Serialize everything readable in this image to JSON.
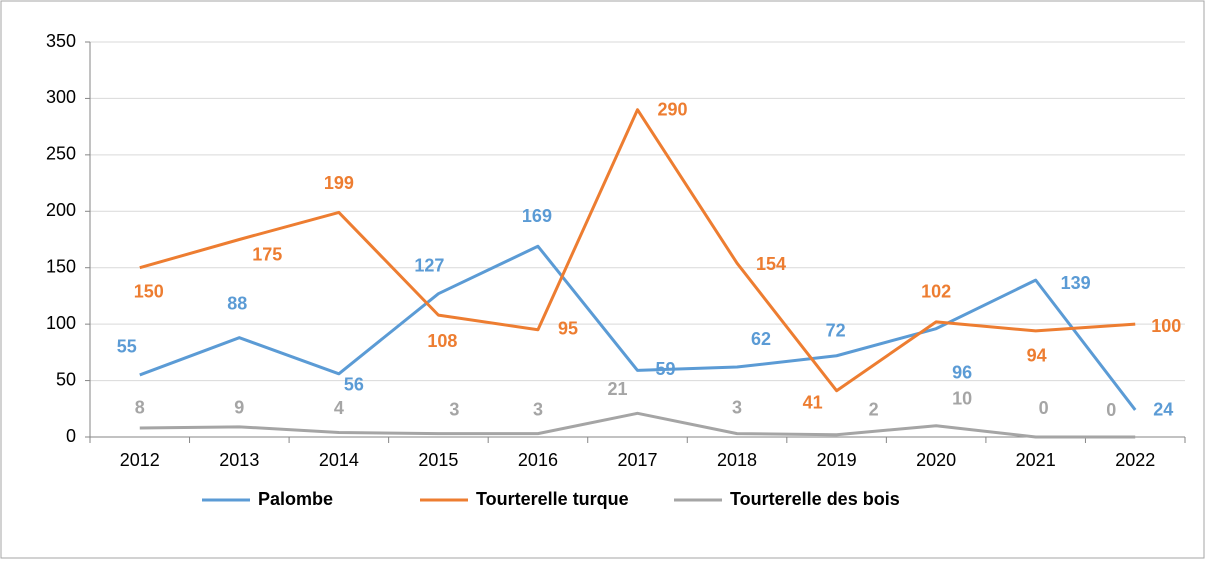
{
  "chart_data": {
    "type": "line",
    "categories": [
      "2012",
      "2013",
      "2014",
      "2015",
      "2016",
      "2017",
      "2018",
      "2019",
      "2020",
      "2021",
      "2022"
    ],
    "series": [
      {
        "name": "Palombe",
        "color": "#5b9bd5",
        "values": [
          55,
          88,
          56,
          127,
          169,
          59,
          62,
          72,
          96,
          139,
          24
        ]
      },
      {
        "name": "Tourterelle turque",
        "color": "#ed7d31",
        "values": [
          150,
          175,
          199,
          108,
          95,
          290,
          154,
          41,
          102,
          94,
          100
        ]
      },
      {
        "name": "Tourterelle des bois",
        "color": "#a5a5a5",
        "values": [
          8,
          9,
          4,
          3,
          3,
          21,
          3,
          2,
          10,
          0,
          0
        ]
      }
    ],
    "ylim": [
      0,
      350
    ],
    "yticks": [
      0,
      50,
      100,
      150,
      200,
      250,
      300,
      350
    ],
    "grid": true,
    "legend": "bottom"
  }
}
